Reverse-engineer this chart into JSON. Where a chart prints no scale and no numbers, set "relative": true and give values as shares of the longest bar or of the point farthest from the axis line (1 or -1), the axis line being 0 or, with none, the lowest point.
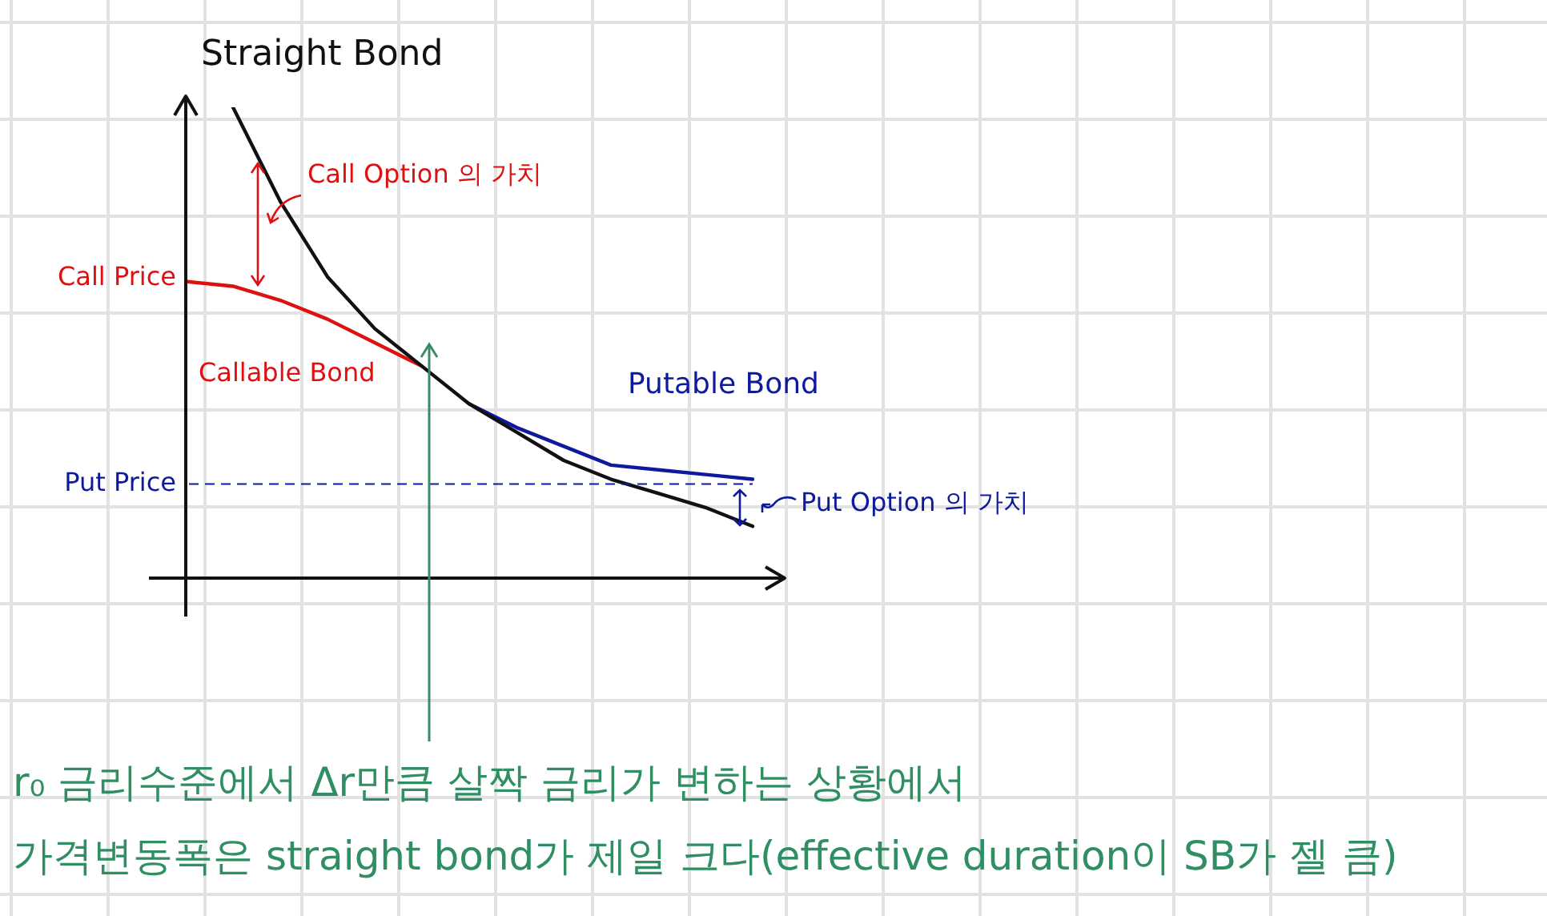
{
  "chart_data": {
    "type": "line",
    "relative": true,
    "categories": [
      null,
      null,
      null,
      null,
      null,
      null,
      null,
      null,
      null,
      null,
      null,
      null,
      null
    ],
    "series": [
      {
        "name": "Straight Bond",
        "color": "#111111",
        "values": [
          null,
          1,
          0.8,
          0.64,
          0.53,
          0.45,
          0.37,
          0.31,
          0.25,
          0.21,
          0.18,
          0.15,
          0.11
        ]
      },
      {
        "name": "Callable Bond",
        "color": "#dd1111",
        "values": [
          0.63,
          0.62,
          0.59,
          0.55,
          0.5,
          0.45,
          null,
          null,
          null,
          null,
          null,
          null,
          null
        ]
      },
      {
        "name": "Putable Bond",
        "color": "#0d1a9c",
        "values": [
          null,
          null,
          null,
          null,
          null,
          null,
          0.37,
          0.32,
          0.28,
          0.24,
          0.23,
          0.22,
          0.21
        ]
      }
    ],
    "ref_lines": [
      {
        "axis": "y",
        "value": 0.2,
        "label": "Put Price",
        "color": "#0d1a9c",
        "line_style": "dashed"
      }
    ],
    "annotations": [
      "Call Option 의 가치",
      "Call Price",
      "Put Option 의 가치",
      "r₀ 금리수준에서 Δr만큼 살짝 금리가 변하는 상황에서",
      "가격변동폭은 straight bond가 제일 크다(effective duration이 SB가 젤 큼)"
    ],
    "grid": false,
    "legend": false,
    "marker": "none",
    "line_style": "solid"
  }
}
